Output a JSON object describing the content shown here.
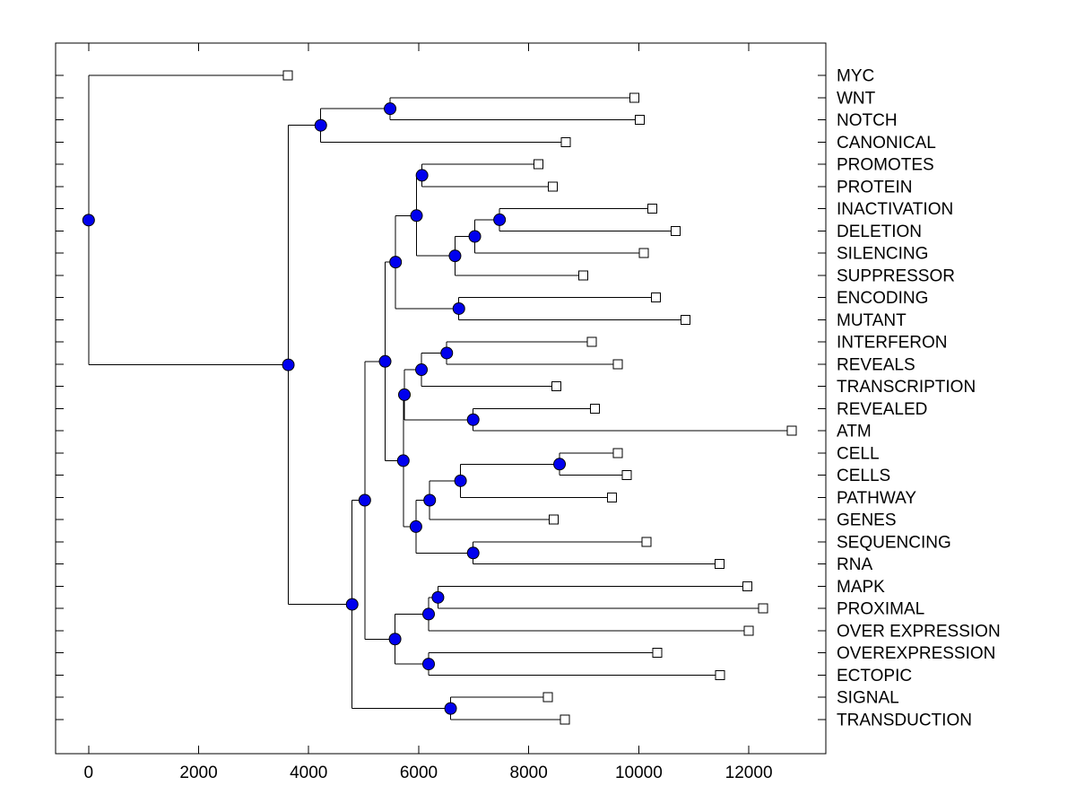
{
  "figure": {
    "background": "#ffffff",
    "title": ""
  },
  "chart_data": {
    "type": "dendrogram",
    "orientation": "horizontal-left-to-right",
    "title": "",
    "xlabel": "",
    "ylabel": "",
    "grid": false,
    "x_axis": {
      "ticks": [
        0,
        2000,
        4000,
        6000,
        8000,
        10000,
        12000
      ],
      "range": [
        -600,
        13400
      ]
    },
    "leaf_labels": [
      "MYC",
      "WNT",
      "NOTCH",
      "CANONICAL",
      "PROMOTES",
      "PROTEIN",
      "INACTIVATION",
      "DELETION",
      "SILENCING",
      "SUPPRESSOR",
      "ENCODING",
      "MUTANT",
      "INTERFERON",
      "REVEALS",
      "TRANSCRIPTION",
      "REVEALED",
      "ATM",
      "CELL",
      "CELLS",
      "PATHWAY",
      "GENES",
      "SEQUENCING",
      "RNA",
      "MAPK",
      "PROXIMAL",
      "OVER EXPRESSION",
      "OVEREXPRESSION",
      "ECTOPIC",
      "SIGNAL",
      "TRANSDUCTION"
    ],
    "markers": {
      "internal_node": "filled-circle",
      "leaf_node": "open-square"
    },
    "styles": {
      "line_color": "#000000",
      "node_fill": "#0000ee",
      "node_edge": "#000000",
      "leaf_marker_fill": "#ffffff",
      "leaf_marker_edge": "#000000"
    },
    "tree": {
      "d": 0,
      "children": [
        {
          "name": "MYC",
          "d": 3620
        },
        {
          "d": 3630,
          "children": [
            {
              "d": 4220,
              "children": [
                {
                  "d": 5480,
                  "children": [
                    {
                      "name": "WNT",
                      "d": 9920
                    },
                    {
                      "name": "NOTCH",
                      "d": 10020
                    }
                  ]
                },
                {
                  "name": "CANONICAL",
                  "d": 8670
                }
              ]
            },
            {
              "d": 4790,
              "children": [
                {
                  "d": 5020,
                  "children": [
                    {
                      "d": 5390,
                      "children": [
                        {
                          "d": 5580,
                          "children": [
                            {
                              "d": 5960,
                              "children": [
                                {
                                  "d": 6060,
                                  "children": [
                                    {
                                      "name": "PROMOTES",
                                      "d": 8180
                                    },
                                    {
                                      "name": "PROTEIN",
                                      "d": 8440
                                    }
                                  ]
                                },
                                {
                                  "d": 6660,
                                  "children": [
                                    {
                                      "d": 7020,
                                      "children": [
                                        {
                                          "d": 7470,
                                          "children": [
                                            {
                                              "name": "INACTIVATION",
                                              "d": 10250
                                            },
                                            {
                                              "name": "DELETION",
                                              "d": 10670
                                            }
                                          ]
                                        },
                                        {
                                          "name": "SILENCING",
                                          "d": 10090
                                        }
                                      ]
                                    },
                                    {
                                      "name": "SUPPRESSOR",
                                      "d": 8990
                                    }
                                  ]
                                }
                              ]
                            },
                            {
                              "d": 6730,
                              "children": [
                                {
                                  "name": "ENCODING",
                                  "d": 10310
                                },
                                {
                                  "name": "MUTANT",
                                  "d": 10850
                                }
                              ]
                            }
                          ]
                        },
                        {
                          "d": 5720,
                          "children": [
                            {
                              "d": 5740,
                              "children": [
                                {
                                  "d": 6050,
                                  "children": [
                                    {
                                      "d": 6510,
                                      "children": [
                                        {
                                          "name": "INTERFERON",
                                          "d": 9150
                                        },
                                        {
                                          "name": "REVEALS",
                                          "d": 9620
                                        }
                                      ]
                                    },
                                    {
                                      "name": "TRANSCRIPTION",
                                      "d": 8500
                                    }
                                  ]
                                },
                                {
                                  "d": 6990,
                                  "children": [
                                    {
                                      "name": "REVEALED",
                                      "d": 9200
                                    },
                                    {
                                      "name": "ATM",
                                      "d": 12780
                                    }
                                  ]
                                }
                              ]
                            },
                            {
                              "d": 5950,
                              "children": [
                                {
                                  "d": 6200,
                                  "children": [
                                    {
                                      "d": 6760,
                                      "children": [
                                        {
                                          "d": 8560,
                                          "children": [
                                            {
                                              "name": "CELL",
                                              "d": 9620
                                            },
                                            {
                                              "name": "CELLS",
                                              "d": 9780
                                            }
                                          ]
                                        },
                                        {
                                          "name": "PATHWAY",
                                          "d": 9510
                                        }
                                      ]
                                    },
                                    {
                                      "name": "GENES",
                                      "d": 8450
                                    }
                                  ]
                                },
                                {
                                  "d": 6990,
                                  "children": [
                                    {
                                      "name": "SEQUENCING",
                                      "d": 10140
                                    },
                                    {
                                      "name": "RNA",
                                      "d": 11470
                                    }
                                  ]
                                }
                              ]
                            }
                          ]
                        }
                      ]
                    },
                    {
                      "d": 5570,
                      "children": [
                        {
                          "d": 6180,
                          "children": [
                            {
                              "d": 6350,
                              "children": [
                                {
                                  "name": "MAPK",
                                  "d": 11970
                                },
                                {
                                  "name": "PROXIMAL",
                                  "d": 12260
                                }
                              ]
                            },
                            {
                              "name": "OVER EXPRESSION",
                              "d": 12000
                            }
                          ]
                        },
                        {
                          "d": 6180,
                          "children": [
                            {
                              "name": "OVEREXPRESSION",
                              "d": 10340
                            },
                            {
                              "name": "ECTOPIC",
                              "d": 11480
                            }
                          ]
                        }
                      ]
                    }
                  ]
                },
                {
                  "d": 6580,
                  "children": [
                    {
                      "name": "SIGNAL",
                      "d": 8350
                    },
                    {
                      "name": "TRANSDUCTION",
                      "d": 8660
                    }
                  ]
                }
              ]
            }
          ]
        }
      ]
    }
  }
}
